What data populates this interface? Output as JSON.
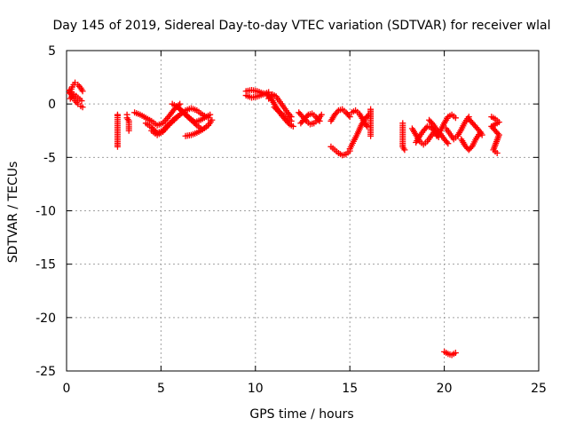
{
  "chart_data": {
    "type": "scatter",
    "title": "Day 145 of 2019, Sidereal Day-to-day VTEC variation (SDTVAR) for receiver wlal",
    "xlabel": "GPS time / hours",
    "ylabel": "SDTVAR / TECUs",
    "xlim": [
      0,
      25
    ],
    "ylim": [
      -25,
      5
    ],
    "xticks": [
      0,
      5,
      10,
      15,
      20,
      25
    ],
    "yticks": [
      5,
      0,
      -5,
      -10,
      -15,
      -20,
      -25
    ],
    "grid": true,
    "marker": "+",
    "color": "#ff0000",
    "series": [
      {
        "name": "SDTVAR",
        "segments": [
          {
            "x": [
              0.15,
              0.3,
              0.45,
              0.6,
              0.75,
              0.85
            ],
            "y": [
              1.0,
              1.6,
              2.0,
              1.8,
              1.5,
              1.2
            ]
          },
          {
            "x": [
              0.15,
              0.3,
              0.45,
              0.6,
              0.75,
              0.85
            ],
            "y": [
              1.3,
              0.7,
              0.3,
              0.0,
              -0.2,
              -0.3
            ]
          },
          {
            "x": [
              0.2,
              0.4,
              0.6,
              0.8
            ],
            "y": [
              0.5,
              0.9,
              0.6,
              0.3
            ]
          },
          {
            "x": [
              2.7,
              2.7,
              2.7,
              2.7
            ],
            "y": [
              -1.0,
              -1.1,
              -2.0,
              -4.0
            ]
          },
          {
            "x": [
              3.2,
              3.2,
              3.3,
              3.3
            ],
            "y": [
              -1.0,
              -1.3,
              -1.6,
              -2.5
            ]
          },
          {
            "x": [
              3.6,
              3.9,
              4.2,
              4.5,
              4.8,
              5.1,
              5.4,
              5.7,
              6.0
            ],
            "y": [
              -0.8,
              -1.0,
              -1.3,
              -1.6,
              -2.0,
              -1.8,
              -1.2,
              -0.5,
              0.0
            ]
          },
          {
            "x": [
              4.2,
              4.5,
              4.8,
              5.1,
              5.4,
              5.7,
              6.0
            ],
            "y": [
              -1.8,
              -2.2,
              -2.7,
              -2.5,
              -1.9,
              -1.4,
              -1.0
            ]
          },
          {
            "x": [
              4.5,
              4.8,
              5.1,
              5.4,
              5.7,
              6.0,
              6.3,
              6.6,
              6.9,
              7.2,
              7.5
            ],
            "y": [
              -2.5,
              -2.9,
              -2.6,
              -2.0,
              -1.5,
              -1.0,
              -0.6,
              -0.4,
              -0.6,
              -1.0,
              -1.3
            ]
          },
          {
            "x": [
              5.6,
              5.9,
              6.2,
              6.5,
              6.8,
              7.1,
              7.4,
              7.6
            ],
            "y": [
              0.0,
              -0.3,
              -0.8,
              -1.3,
              -1.7,
              -1.5,
              -1.2,
              -1.0
            ]
          },
          {
            "x": [
              6.0,
              6.3,
              6.6,
              6.9,
              7.2,
              7.5,
              7.7
            ],
            "y": [
              -0.5,
              -1.0,
              -1.5,
              -2.0,
              -2.4,
              -2.0,
              -1.5
            ]
          },
          {
            "x": [
              6.3,
              6.6,
              6.9,
              7.2,
              7.5
            ],
            "y": [
              -3.0,
              -2.9,
              -2.7,
              -2.4,
              -2.0
            ]
          },
          {
            "x": [
              9.5,
              9.8,
              10.1,
              10.4,
              10.7
            ],
            "y": [
              1.2,
              1.3,
              1.2,
              1.0,
              0.8
            ]
          },
          {
            "x": [
              9.5,
              9.8,
              10.1,
              10.4,
              10.7
            ],
            "y": [
              0.8,
              0.6,
              0.7,
              0.9,
              1.1
            ]
          },
          {
            "x": [
              10.6,
              10.8,
              11.0,
              11.2,
              11.4,
              11.6,
              11.8,
              12.0
            ],
            "y": [
              1.0,
              0.6,
              0.0,
              -0.6,
              -1.1,
              -1.5,
              -1.9,
              -2.1
            ]
          },
          {
            "x": [
              10.7,
              10.9,
              11.1,
              11.3,
              11.5,
              11.7,
              11.9
            ],
            "y": [
              0.5,
              0.9,
              0.7,
              0.2,
              -0.3,
              -0.8,
              -1.2
            ]
          },
          {
            "x": [
              11.0,
              11.3,
              11.6,
              11.9
            ],
            "y": [
              -0.3,
              -0.8,
              -1.2,
              -1.6
            ]
          },
          {
            "x": [
              12.3,
              12.5,
              12.7,
              12.9,
              13.1,
              13.3,
              13.5
            ],
            "y": [
              -0.8,
              -1.2,
              -1.6,
              -1.9,
              -1.8,
              -1.5,
              -1.0
            ]
          },
          {
            "x": [
              12.4,
              12.6,
              12.8,
              13.0,
              13.2,
              13.4
            ],
            "y": [
              -1.8,
              -1.4,
              -1.0,
              -0.9,
              -1.2,
              -1.6
            ]
          },
          {
            "x": [
              14.0,
              14.2,
              14.4,
              14.6,
              14.8,
              15.0
            ],
            "y": [
              -1.6,
              -1.0,
              -0.6,
              -0.5,
              -0.8,
              -1.2
            ]
          },
          {
            "x": [
              14.0,
              14.2,
              14.4,
              14.6,
              14.8,
              15.0
            ],
            "y": [
              -4.0,
              -4.3,
              -4.6,
              -4.8,
              -4.7,
              -4.4
            ]
          },
          {
            "x": [
              15.0,
              15.2,
              15.4,
              15.6,
              15.8,
              16.0
            ],
            "y": [
              -4.2,
              -3.5,
              -2.8,
              -2.0,
              -1.4,
              -1.0
            ]
          },
          {
            "x": [
              15.1,
              15.3,
              15.5,
              15.7,
              15.9
            ],
            "y": [
              -0.8,
              -0.6,
              -0.9,
              -1.5,
              -2.1
            ]
          },
          {
            "x": [
              16.1,
              16.1,
              16.1
            ],
            "y": [
              -0.5,
              -1.5,
              -3.0
            ]
          },
          {
            "x": [
              17.8,
              17.8,
              17.8,
              17.9
            ],
            "y": [
              -1.8,
              -2.0,
              -4.0,
              -4.3
            ]
          },
          {
            "x": [
              18.3,
              18.5,
              18.7,
              18.9,
              19.1,
              19.3,
              19.5
            ],
            "y": [
              -2.3,
              -2.9,
              -3.5,
              -3.8,
              -3.5,
              -3.0,
              -2.5
            ]
          },
          {
            "x": [
              18.5,
              18.7,
              18.9,
              19.1,
              19.3,
              19.5,
              19.7
            ],
            "y": [
              -3.6,
              -3.0,
              -2.5,
              -2.1,
              -2.2,
              -2.6,
              -3.1
            ]
          },
          {
            "x": [
              19.2,
              19.4,
              19.6,
              19.8,
              20.0,
              20.2
            ],
            "y": [
              -1.5,
              -1.9,
              -2.4,
              -2.8,
              -3.3,
              -3.7
            ]
          },
          {
            "x": [
              19.6,
              19.8,
              20.0,
              20.2,
              20.4,
              20.6
            ],
            "y": [
              -3.0,
              -2.5,
              -1.8,
              -1.2,
              -1.0,
              -1.3
            ]
          },
          {
            "x": [
              20.1,
              20.3,
              20.5,
              20.7,
              20.9,
              21.1,
              21.3
            ],
            "y": [
              -2.3,
              -2.8,
              -3.3,
              -3.0,
              -2.4,
              -1.7,
              -1.2
            ]
          },
          {
            "x": [
              20.9,
              21.1,
              21.3,
              21.5,
              21.7,
              21.9
            ],
            "y": [
              -3.3,
              -3.9,
              -4.3,
              -3.9,
              -3.2,
              -2.7
            ]
          },
          {
            "x": [
              21.3,
              21.5,
              21.7,
              21.9,
              22.0
            ],
            "y": [
              -1.4,
              -1.8,
              -2.2,
              -2.6,
              -2.9
            ]
          },
          {
            "x": [
              22.5,
              22.7,
              22.9,
              22.5,
              22.7,
              22.9,
              22.6,
              22.8
            ],
            "y": [
              -1.2,
              -1.4,
              -1.7,
              -2.1,
              -2.5,
              -2.9,
              -4.3,
              -4.6
            ]
          },
          {
            "x": [
              20.0,
              20.2,
              20.4,
              20.6
            ],
            "y": [
              -23.2,
              -23.4,
              -23.5,
              -23.3
            ]
          }
        ]
      }
    ]
  }
}
